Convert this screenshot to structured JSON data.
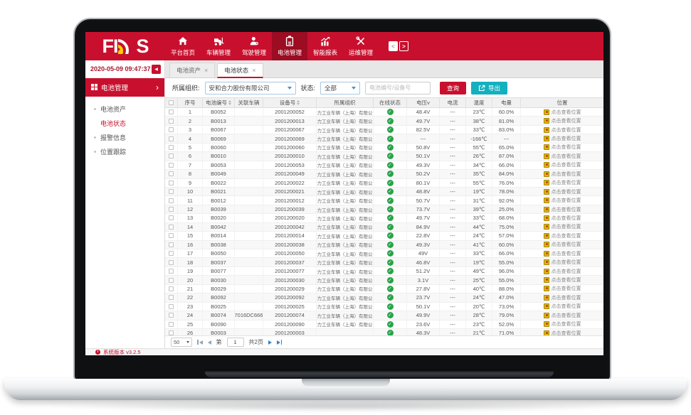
{
  "colors": {
    "primary": "#c8102e",
    "primary-dark": "#9c0c22",
    "teal": "#13b0bf",
    "green": "#29a34a",
    "yellow": "#ddb80e",
    "link-blue": "#3583c6"
  },
  "navbar": {
    "logo_prefix": "FI",
    "logo_suffix": "S",
    "collapse_left": "<",
    "collapse_right": ">",
    "items": [
      {
        "id": "home",
        "label": "平台首页",
        "icon": "home-icon",
        "active": false
      },
      {
        "id": "vehicle",
        "label": "车辆管理",
        "icon": "forklift-icon",
        "active": false
      },
      {
        "id": "driver",
        "label": "驾驶管理",
        "icon": "driver-icon",
        "active": false
      },
      {
        "id": "battery",
        "label": "电池管理",
        "icon": "battery-icon",
        "active": true
      },
      {
        "id": "report",
        "label": "智能报表",
        "icon": "report-icon",
        "active": false
      },
      {
        "id": "maintenance",
        "label": "运维管理",
        "icon": "maintenance-icon",
        "active": false
      }
    ]
  },
  "sidebar": {
    "datetime": "2020-05-09 09:47:37",
    "collapse_icon": "◀",
    "section_label": "电池管理",
    "section_chevron": "›",
    "items": [
      {
        "label": "电池资产",
        "active": false
      },
      {
        "label": "电池状态",
        "active": true
      },
      {
        "label": "报警信息",
        "active": false
      },
      {
        "label": "位置跟踪",
        "active": false
      }
    ]
  },
  "tabs": {
    "close_icon": "×",
    "items": [
      {
        "label": "电池资产",
        "active": false
      },
      {
        "label": "电池状态",
        "active": true
      }
    ]
  },
  "filters": {
    "org_label": "所属组织:",
    "org_value": "安和合力股份有限公司",
    "status_label": "状态:",
    "status_value": "全部",
    "search_placeholder": "电池编号/设备号",
    "search_button": "查询",
    "export_button": "导出"
  },
  "table": {
    "location_text": "点击查看位置",
    "columns": [
      {
        "id": "select",
        "label": ""
      },
      {
        "id": "no",
        "label": "序号"
      },
      {
        "id": "battery",
        "label": "电池编号",
        "sortable": true
      },
      {
        "id": "vehicle",
        "label": "关联车辆"
      },
      {
        "id": "device",
        "label": "设备号",
        "sortable": true
      },
      {
        "id": "org",
        "label": "所属组织"
      },
      {
        "id": "online",
        "label": "在线状态"
      },
      {
        "id": "voltage",
        "label": "电压v"
      },
      {
        "id": "current",
        "label": "电流"
      },
      {
        "id": "temp",
        "label": "温度"
      },
      {
        "id": "charge",
        "label": "电量"
      },
      {
        "id": "location",
        "label": "位置"
      }
    ],
    "rows": [
      {
        "no": "1",
        "battery": "B0052",
        "vehicle": "",
        "device": "2001200052",
        "org": "合力工业车辆（上海）有限公司",
        "online": true,
        "voltage": "48.4V",
        "current": "---",
        "temp": "23℃",
        "charge": "60.0%"
      },
      {
        "no": "2",
        "battery": "B0013",
        "vehicle": "",
        "device": "2001200013",
        "org": "合力工业车辆（上海）有限公司",
        "online": true,
        "voltage": "49.7V",
        "current": "---",
        "temp": "38℃",
        "charge": "81.0%"
      },
      {
        "no": "3",
        "battery": "B0067",
        "vehicle": "",
        "device": "2001200067",
        "org": "合力工业车辆（上海）有限公司",
        "online": true,
        "voltage": "82.5V",
        "current": "---",
        "temp": "33℃",
        "charge": "83.0%"
      },
      {
        "no": "4",
        "battery": "B0069",
        "vehicle": "",
        "device": "2001200069",
        "org": "合力工业车辆（上海）有限公司",
        "online": true,
        "voltage": "---",
        "current": "---",
        "temp": "-166℃",
        "charge": "---"
      },
      {
        "no": "5",
        "battery": "B0060",
        "vehicle": "",
        "device": "2001200060",
        "org": "合力工业车辆（上海）有限公司",
        "online": true,
        "voltage": "50.8V",
        "current": "---",
        "temp": "55℃",
        "charge": "65.0%"
      },
      {
        "no": "6",
        "battery": "B0010",
        "vehicle": "",
        "device": "2001200010",
        "org": "合力工业车辆（上海）有限公司",
        "online": true,
        "voltage": "50.1V",
        "current": "---",
        "temp": "26℃",
        "charge": "87.0%"
      },
      {
        "no": "7",
        "battery": "B0053",
        "vehicle": "",
        "device": "2001200053",
        "org": "合力工业车辆（上海）有限公司",
        "online": true,
        "voltage": "49.3V",
        "current": "---",
        "temp": "34℃",
        "charge": "66.0%"
      },
      {
        "no": "8",
        "battery": "B0049",
        "vehicle": "",
        "device": "2001200049",
        "org": "合力工业车辆（上海）有限公司",
        "online": true,
        "voltage": "50.2V",
        "current": "---",
        "temp": "35℃",
        "charge": "84.0%"
      },
      {
        "no": "9",
        "battery": "B0022",
        "vehicle": "",
        "device": "2001200022",
        "org": "合力工业车辆（上海）有限公司",
        "online": true,
        "voltage": "80.1V",
        "current": "---",
        "temp": "55℃",
        "charge": "76.0%"
      },
      {
        "no": "10",
        "battery": "B0021",
        "vehicle": "",
        "device": "2001200021",
        "org": "合力工业车辆（上海）有限公司",
        "online": true,
        "voltage": "48.8V",
        "current": "---",
        "temp": "19℃",
        "charge": "78.0%"
      },
      {
        "no": "11",
        "battery": "B0012",
        "vehicle": "",
        "device": "2001200012",
        "org": "合力工业车辆（上海）有限公司",
        "online": true,
        "voltage": "50.7V",
        "current": "---",
        "temp": "31℃",
        "charge": "92.0%"
      },
      {
        "no": "12",
        "battery": "B0039",
        "vehicle": "",
        "device": "2001200039",
        "org": "合力工业车辆（上海）有限公司",
        "online": true,
        "voltage": "73.7V",
        "current": "---",
        "temp": "39℃",
        "charge": "25.0%"
      },
      {
        "no": "13",
        "battery": "B0020",
        "vehicle": "",
        "device": "2001200020",
        "org": "合力工业车辆（上海）有限公司",
        "online": true,
        "voltage": "49.7V",
        "current": "---",
        "temp": "33℃",
        "charge": "68.0%"
      },
      {
        "no": "14",
        "battery": "B0042",
        "vehicle": "",
        "device": "2001200042",
        "org": "合力工业车辆（上海）有限公司",
        "online": true,
        "voltage": "84.9V",
        "current": "---",
        "temp": "44℃",
        "charge": "75.0%"
      },
      {
        "no": "15",
        "battery": "B0014",
        "vehicle": "",
        "device": "2001200014",
        "org": "合力工业车辆（上海）有限公司",
        "online": true,
        "voltage": "22.8V",
        "current": "---",
        "temp": "24℃",
        "charge": "57.0%"
      },
      {
        "no": "16",
        "battery": "B0038",
        "vehicle": "",
        "device": "2001200038",
        "org": "合力工业车辆（上海）有限公司",
        "online": true,
        "voltage": "49.3V",
        "current": "---",
        "temp": "41℃",
        "charge": "60.0%"
      },
      {
        "no": "17",
        "battery": "B0050",
        "vehicle": "",
        "device": "2001200050",
        "org": "合力工业车辆（上海）有限公司",
        "online": true,
        "voltage": "49V",
        "current": "---",
        "temp": "33℃",
        "charge": "66.0%"
      },
      {
        "no": "18",
        "battery": "B0037",
        "vehicle": "",
        "device": "2001200037",
        "org": "合力工业车辆（上海）有限公司",
        "online": true,
        "voltage": "46.8V",
        "current": "---",
        "temp": "19℃",
        "charge": "55.0%"
      },
      {
        "no": "19",
        "battery": "B0077",
        "vehicle": "",
        "device": "2001200077",
        "org": "合力工业车辆（上海）有限公司",
        "online": true,
        "voltage": "51.2V",
        "current": "---",
        "temp": "49℃",
        "charge": "96.0%"
      },
      {
        "no": "20",
        "battery": "B0030",
        "vehicle": "",
        "device": "2001200030",
        "org": "合力工业车辆（上海）有限公司",
        "online": true,
        "voltage": "3.1V",
        "current": "---",
        "temp": "25℃",
        "charge": "55.0%"
      },
      {
        "no": "21",
        "battery": "B0029",
        "vehicle": "",
        "device": "2001200029",
        "org": "合力工业车辆（上海）有限公司",
        "online": true,
        "voltage": "27.8V",
        "current": "---",
        "temp": "40℃",
        "charge": "88.0%"
      },
      {
        "no": "22",
        "battery": "B0092",
        "vehicle": "",
        "device": "2001200092",
        "org": "合力工业车辆（上海）有限公司",
        "online": true,
        "voltage": "23.7V",
        "current": "---",
        "temp": "24℃",
        "charge": "47.0%"
      },
      {
        "no": "23",
        "battery": "B0025",
        "vehicle": "",
        "device": "2001200025",
        "org": "合力工业车辆（上海）有限公司",
        "online": true,
        "voltage": "50.1V",
        "current": "---",
        "temp": "20℃",
        "charge": "73.0%"
      },
      {
        "no": "24",
        "battery": "B0074",
        "vehicle": "07016DC6665",
        "device": "2001200074",
        "org": "合力工业车辆（上海）有限公司",
        "online": true,
        "voltage": "49.9V",
        "current": "---",
        "temp": "28℃",
        "charge": "79.0%"
      },
      {
        "no": "25",
        "battery": "B0090",
        "vehicle": "",
        "device": "2001200090",
        "org": "合力工业车辆（上海）有限公司",
        "online": true,
        "voltage": "23.6V",
        "current": "---",
        "temp": "23℃",
        "charge": "52.0%"
      },
      {
        "no": "26",
        "battery": "B0003",
        "vehicle": "",
        "device": "2001200003",
        "org": "",
        "online": true,
        "voltage": "48.3V",
        "current": "---",
        "temp": "21℃",
        "charge": "71.0%"
      }
    ]
  },
  "pagination": {
    "page_size": "50",
    "page_label": "第",
    "page": "1",
    "total_label": "共2页"
  },
  "statusbar": {
    "version": "系统版本 v3.2.5"
  }
}
